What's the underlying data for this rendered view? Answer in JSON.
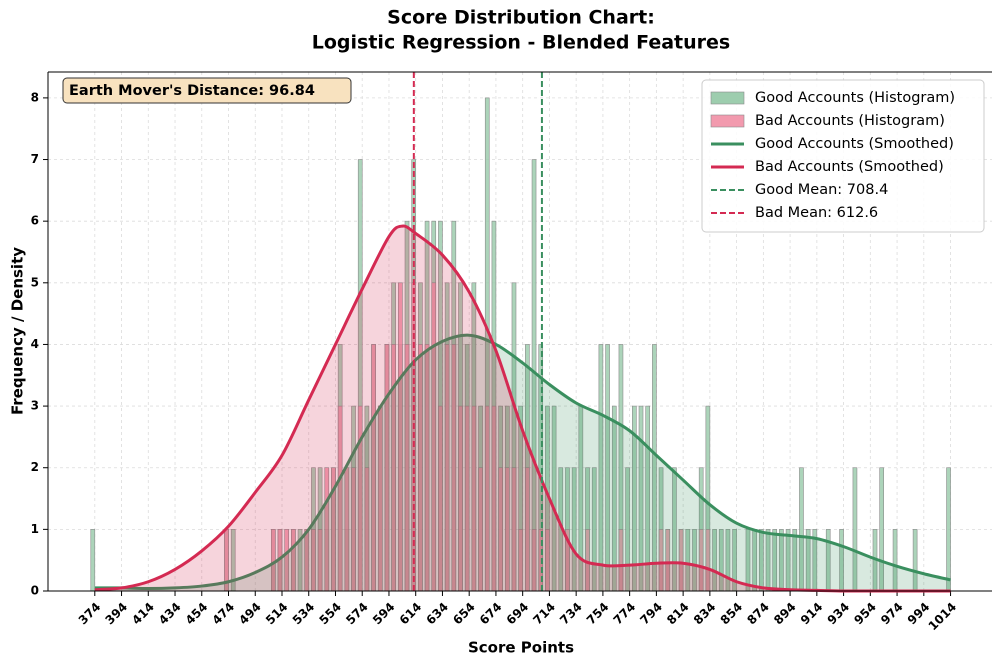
{
  "chart_data": {
    "type": "histogram",
    "title": "Score Distribution Chart:",
    "subtitle": "Logistic Regression - Blended Features",
    "x_label": "Score Points",
    "y_label": "Frequency / Density",
    "annotation": "Earth Mover's Distance: 96.84",
    "legend": "upper right",
    "grid": true,
    "xlim": [
      339,
      1045
    ],
    "ylim": [
      0,
      8.42
    ],
    "xticks": [
      374,
      394,
      414,
      434,
      454,
      474,
      494,
      514,
      534,
      554,
      574,
      594,
      614,
      634,
      654,
      674,
      694,
      714,
      734,
      754,
      774,
      794,
      814,
      834,
      854,
      874,
      894,
      914,
      934,
      954,
      974,
      994,
      1014
    ],
    "yticks": [
      0,
      1,
      2,
      3,
      4,
      5,
      6,
      7,
      8
    ],
    "bins": [
      370,
      375,
      380,
      385,
      390,
      395,
      400,
      405,
      410,
      415,
      420,
      425,
      430,
      435,
      440,
      445,
      450,
      455,
      460,
      465,
      470,
      475,
      480,
      485,
      490,
      495,
      500,
      505,
      510,
      515,
      520,
      525,
      530,
      535,
      540,
      545,
      550,
      555,
      560,
      565,
      570,
      575,
      580,
      585,
      590,
      595,
      600,
      605,
      610,
      615,
      620,
      625,
      630,
      635,
      640,
      645,
      650,
      655,
      660,
      665,
      670,
      675,
      680,
      685,
      690,
      695,
      700,
      705,
      710,
      715,
      720,
      725,
      730,
      735,
      740,
      745,
      750,
      755,
      760,
      765,
      770,
      775,
      780,
      785,
      790,
      795,
      800,
      805,
      810,
      815,
      820,
      825,
      830,
      835,
      840,
      845,
      850,
      855,
      860,
      865,
      870,
      875,
      880,
      885,
      890,
      895,
      900,
      905,
      910,
      915,
      920,
      925,
      930,
      935,
      940,
      945,
      950,
      955,
      960,
      965,
      970,
      975,
      980,
      985,
      990,
      995,
      1000,
      1005,
      1010,
      1015,
      1020
    ],
    "series": [
      {
        "name": "Good Accounts (Histogram)",
        "color": "#9dcdae",
        "values": [
          1,
          0,
          0,
          0,
          0,
          0,
          0,
          0,
          0,
          0,
          0,
          0,
          0,
          0,
          0,
          0,
          0,
          0,
          0,
          0,
          1,
          1,
          0,
          0,
          0,
          0,
          0,
          1,
          1,
          0,
          1,
          1,
          1,
          2,
          2,
          1,
          2,
          4,
          1,
          3,
          7,
          3,
          4,
          3,
          4,
          5,
          4,
          6,
          7,
          5,
          6,
          6,
          6,
          5,
          6,
          5,
          4,
          5,
          3,
          8,
          6,
          3,
          3,
          5,
          3,
          4,
          7,
          4,
          3,
          3,
          2,
          2,
          2,
          3,
          2,
          2,
          4,
          4,
          3,
          4,
          2,
          3,
          3,
          3,
          4,
          2,
          1,
          2,
          1,
          1,
          1,
          2,
          3,
          1,
          1,
          1,
          1,
          0,
          1,
          1,
          1,
          1,
          1,
          1,
          1,
          1,
          2,
          1,
          1,
          0,
          1,
          0,
          1,
          0,
          2,
          0,
          0,
          1,
          2,
          0,
          1,
          0,
          0,
          1,
          0,
          0,
          0,
          0,
          2,
          0
        ]
      },
      {
        "name": "Bad Accounts (Histogram)",
        "color": "#f29aae",
        "values": [
          0,
          0,
          0,
          0,
          0,
          0,
          0,
          0,
          0,
          0,
          0,
          0,
          0,
          0,
          0,
          0,
          0,
          0,
          0,
          0,
          1,
          0,
          0,
          0,
          0,
          0,
          0,
          1,
          1,
          1,
          1,
          0,
          1,
          1,
          1,
          2,
          2,
          3,
          2,
          2,
          3,
          2,
          4,
          3,
          4,
          4,
          5,
          4,
          5,
          4,
          4,
          5,
          3,
          4,
          4,
          3,
          3,
          3,
          2,
          3,
          3,
          2,
          2,
          2,
          1,
          2,
          1,
          1,
          1,
          0,
          0,
          1,
          0,
          0,
          1,
          0,
          0,
          0,
          0,
          1,
          0,
          0,
          0,
          0,
          0,
          1,
          1,
          0,
          1,
          0,
          0,
          1,
          1,
          0,
          0,
          0,
          0,
          0,
          0,
          0,
          0,
          0,
          0,
          0,
          0,
          0,
          0,
          0,
          0,
          0,
          0,
          0,
          0,
          0,
          0,
          0,
          0,
          0,
          0,
          0,
          0,
          0,
          0,
          0,
          0,
          0,
          0,
          0,
          0,
          0
        ]
      },
      {
        "name": "Good Accounts (Smoothed)",
        "color": "#3a8f5f",
        "x": [
          374,
          394,
          414,
          434,
          454,
          474,
          494,
          514,
          534,
          554,
          574,
          594,
          614,
          634,
          654,
          674,
          694,
          714,
          734,
          754,
          774,
          794,
          814,
          834,
          854,
          874,
          894,
          914,
          934,
          954,
          974,
          994,
          1014
        ],
        "values": [
          0.05,
          0.05,
          0.04,
          0.05,
          0.08,
          0.15,
          0.3,
          0.55,
          1.0,
          1.7,
          2.5,
          3.2,
          3.75,
          4.05,
          4.15,
          4.0,
          3.7,
          3.35,
          3.05,
          2.85,
          2.6,
          2.2,
          1.8,
          1.4,
          1.1,
          0.95,
          0.9,
          0.85,
          0.72,
          0.55,
          0.4,
          0.28,
          0.18
        ]
      },
      {
        "name": "Bad Accounts (Smoothed)",
        "color": "#d42a52",
        "x": [
          374,
          394,
          414,
          434,
          454,
          474,
          494,
          514,
          534,
          554,
          574,
          594,
          604,
          614,
          634,
          654,
          674,
          694,
          714,
          734,
          754,
          774,
          794,
          814,
          834,
          854,
          874,
          894,
          914,
          934,
          954,
          974,
          994,
          1014
        ],
        "values": [
          0.02,
          0.05,
          0.15,
          0.35,
          0.65,
          1.05,
          1.6,
          2.2,
          3.1,
          4.0,
          4.9,
          5.75,
          5.92,
          5.8,
          5.45,
          4.85,
          3.9,
          2.6,
          1.5,
          0.6,
          0.42,
          0.42,
          0.45,
          0.45,
          0.35,
          0.15,
          0.05,
          0.02,
          0.01,
          0,
          0,
          0,
          0,
          0
        ]
      }
    ],
    "means": [
      {
        "name": "Good Mean: 708.4",
        "value": 708.4,
        "color": "#3a8f5f"
      },
      {
        "name": "Bad Mean: 612.6",
        "value": 612.6,
        "color": "#d42a52"
      }
    ]
  }
}
